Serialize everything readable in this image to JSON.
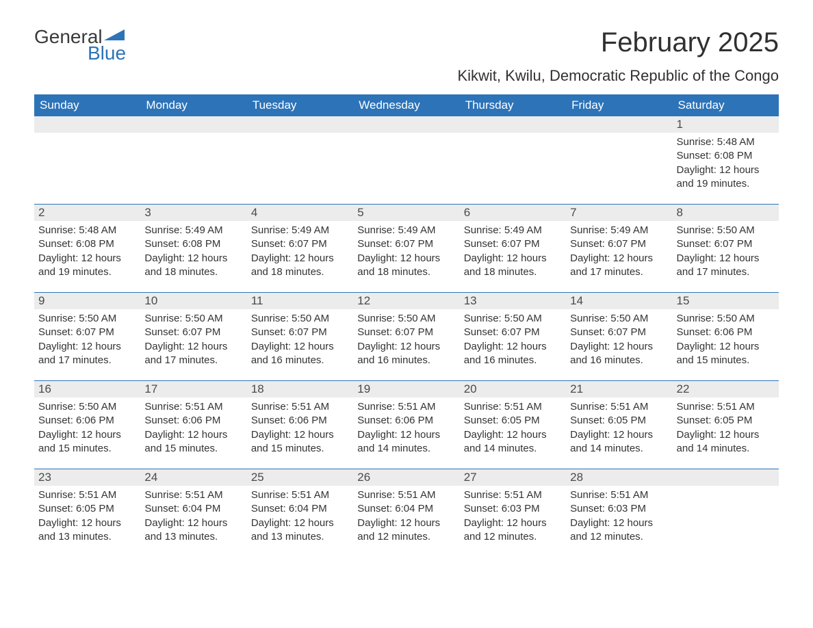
{
  "logo": {
    "word1": "General",
    "word2": "Blue"
  },
  "title": "February 2025",
  "subtitle": "Kikwit, Kwilu, Democratic Republic of the Congo",
  "colors": {
    "header_bg": "#2d73b8",
    "header_text": "#ffffff",
    "daynum_bg": "#ececec",
    "daynum_text": "#4a4a4a",
    "body_text": "#333333",
    "rule": "#2d73b8",
    "background": "#ffffff",
    "logo_accent": "#2d73b8"
  },
  "typography": {
    "title_fontsize": 40,
    "subtitle_fontsize": 22,
    "dayhead_fontsize": 17,
    "daynum_fontsize": 17,
    "body_fontsize": 15
  },
  "day_headers": [
    "Sunday",
    "Monday",
    "Tuesday",
    "Wednesday",
    "Thursday",
    "Friday",
    "Saturday"
  ],
  "labels": {
    "sunrise": "Sunrise: ",
    "sunset": "Sunset: ",
    "daylight": "Daylight: "
  },
  "weeks": [
    [
      null,
      null,
      null,
      null,
      null,
      null,
      {
        "n": "1",
        "sunrise": "5:48 AM",
        "sunset": "6:08 PM",
        "daylight": "12 hours and 19 minutes."
      }
    ],
    [
      {
        "n": "2",
        "sunrise": "5:48 AM",
        "sunset": "6:08 PM",
        "daylight": "12 hours and 19 minutes."
      },
      {
        "n": "3",
        "sunrise": "5:49 AM",
        "sunset": "6:08 PM",
        "daylight": "12 hours and 18 minutes."
      },
      {
        "n": "4",
        "sunrise": "5:49 AM",
        "sunset": "6:07 PM",
        "daylight": "12 hours and 18 minutes."
      },
      {
        "n": "5",
        "sunrise": "5:49 AM",
        "sunset": "6:07 PM",
        "daylight": "12 hours and 18 minutes."
      },
      {
        "n": "6",
        "sunrise": "5:49 AM",
        "sunset": "6:07 PM",
        "daylight": "12 hours and 18 minutes."
      },
      {
        "n": "7",
        "sunrise": "5:49 AM",
        "sunset": "6:07 PM",
        "daylight": "12 hours and 17 minutes."
      },
      {
        "n": "8",
        "sunrise": "5:50 AM",
        "sunset": "6:07 PM",
        "daylight": "12 hours and 17 minutes."
      }
    ],
    [
      {
        "n": "9",
        "sunrise": "5:50 AM",
        "sunset": "6:07 PM",
        "daylight": "12 hours and 17 minutes."
      },
      {
        "n": "10",
        "sunrise": "5:50 AM",
        "sunset": "6:07 PM",
        "daylight": "12 hours and 17 minutes."
      },
      {
        "n": "11",
        "sunrise": "5:50 AM",
        "sunset": "6:07 PM",
        "daylight": "12 hours and 16 minutes."
      },
      {
        "n": "12",
        "sunrise": "5:50 AM",
        "sunset": "6:07 PM",
        "daylight": "12 hours and 16 minutes."
      },
      {
        "n": "13",
        "sunrise": "5:50 AM",
        "sunset": "6:07 PM",
        "daylight": "12 hours and 16 minutes."
      },
      {
        "n": "14",
        "sunrise": "5:50 AM",
        "sunset": "6:07 PM",
        "daylight": "12 hours and 16 minutes."
      },
      {
        "n": "15",
        "sunrise": "5:50 AM",
        "sunset": "6:06 PM",
        "daylight": "12 hours and 15 minutes."
      }
    ],
    [
      {
        "n": "16",
        "sunrise": "5:50 AM",
        "sunset": "6:06 PM",
        "daylight": "12 hours and 15 minutes."
      },
      {
        "n": "17",
        "sunrise": "5:51 AM",
        "sunset": "6:06 PM",
        "daylight": "12 hours and 15 minutes."
      },
      {
        "n": "18",
        "sunrise": "5:51 AM",
        "sunset": "6:06 PM",
        "daylight": "12 hours and 15 minutes."
      },
      {
        "n": "19",
        "sunrise": "5:51 AM",
        "sunset": "6:06 PM",
        "daylight": "12 hours and 14 minutes."
      },
      {
        "n": "20",
        "sunrise": "5:51 AM",
        "sunset": "6:05 PM",
        "daylight": "12 hours and 14 minutes."
      },
      {
        "n": "21",
        "sunrise": "5:51 AM",
        "sunset": "6:05 PM",
        "daylight": "12 hours and 14 minutes."
      },
      {
        "n": "22",
        "sunrise": "5:51 AM",
        "sunset": "6:05 PM",
        "daylight": "12 hours and 14 minutes."
      }
    ],
    [
      {
        "n": "23",
        "sunrise": "5:51 AM",
        "sunset": "6:05 PM",
        "daylight": "12 hours and 13 minutes."
      },
      {
        "n": "24",
        "sunrise": "5:51 AM",
        "sunset": "6:04 PM",
        "daylight": "12 hours and 13 minutes."
      },
      {
        "n": "25",
        "sunrise": "5:51 AM",
        "sunset": "6:04 PM",
        "daylight": "12 hours and 13 minutes."
      },
      {
        "n": "26",
        "sunrise": "5:51 AM",
        "sunset": "6:04 PM",
        "daylight": "12 hours and 12 minutes."
      },
      {
        "n": "27",
        "sunrise": "5:51 AM",
        "sunset": "6:03 PM",
        "daylight": "12 hours and 12 minutes."
      },
      {
        "n": "28",
        "sunrise": "5:51 AM",
        "sunset": "6:03 PM",
        "daylight": "12 hours and 12 minutes."
      },
      null
    ]
  ]
}
